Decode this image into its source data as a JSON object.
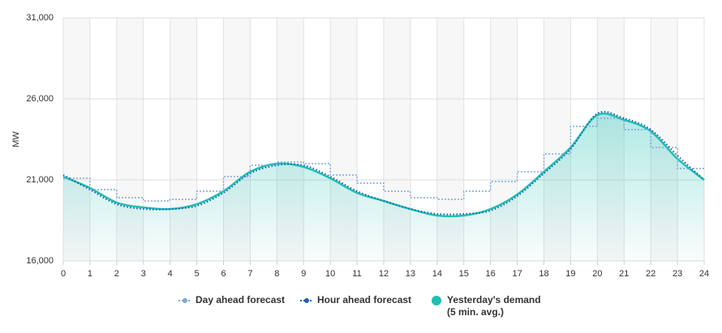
{
  "chart_data": {
    "type": "line",
    "y_label": "MW",
    "xlim": [
      0,
      24
    ],
    "xticks": [
      0,
      1,
      2,
      3,
      4,
      5,
      6,
      7,
      8,
      9,
      10,
      11,
      12,
      13,
      14,
      15,
      16,
      17,
      18,
      19,
      20,
      21,
      22,
      23,
      24
    ],
    "ylim": [
      16000,
      31000
    ],
    "yticks": [
      {
        "value": 16000,
        "label": "16,000"
      },
      {
        "value": 21000,
        "label": "21,000"
      },
      {
        "value": 26000,
        "label": "26,000"
      },
      {
        "value": 31000,
        "label": "31,000"
      }
    ],
    "x": [
      0,
      1,
      2,
      3,
      4,
      5,
      6,
      7,
      8,
      9,
      10,
      11,
      12,
      13,
      14,
      15,
      16,
      17,
      18,
      19,
      20,
      21,
      22,
      23,
      24
    ],
    "series": [
      {
        "name": "Day ahead forecast",
        "color": "#7fa7d9",
        "style": "step",
        "values": [
          21100,
          20400,
          19900,
          19700,
          19800,
          20300,
          21200,
          21900,
          22100,
          22000,
          21300,
          20800,
          20300,
          19900,
          19800,
          20300,
          20900,
          21500,
          22600,
          24300,
          24800,
          24100,
          23000,
          21700,
          21700
        ]
      },
      {
        "name": "Hour ahead forecast",
        "color": "#1f5fb4",
        "style": "dotted",
        "values": [
          21300,
          20400,
          19500,
          19200,
          19200,
          19400,
          20200,
          21400,
          21900,
          21900,
          21200,
          20300,
          19700,
          19200,
          18900,
          18900,
          19100,
          20000,
          21400,
          22900,
          25100,
          24800,
          24100,
          22500,
          21000
        ]
      },
      {
        "name": "Yesterday's demand\n(5 min. avg.)",
        "color": "#1fc0b4",
        "style": "area",
        "values": [
          21200,
          20500,
          19600,
          19300,
          19200,
          19500,
          20300,
          21500,
          22000,
          21800,
          21100,
          20200,
          19700,
          19200,
          18800,
          18800,
          19200,
          20100,
          21500,
          23000,
          25000,
          24700,
          24000,
          22300,
          21000
        ]
      }
    ]
  }
}
